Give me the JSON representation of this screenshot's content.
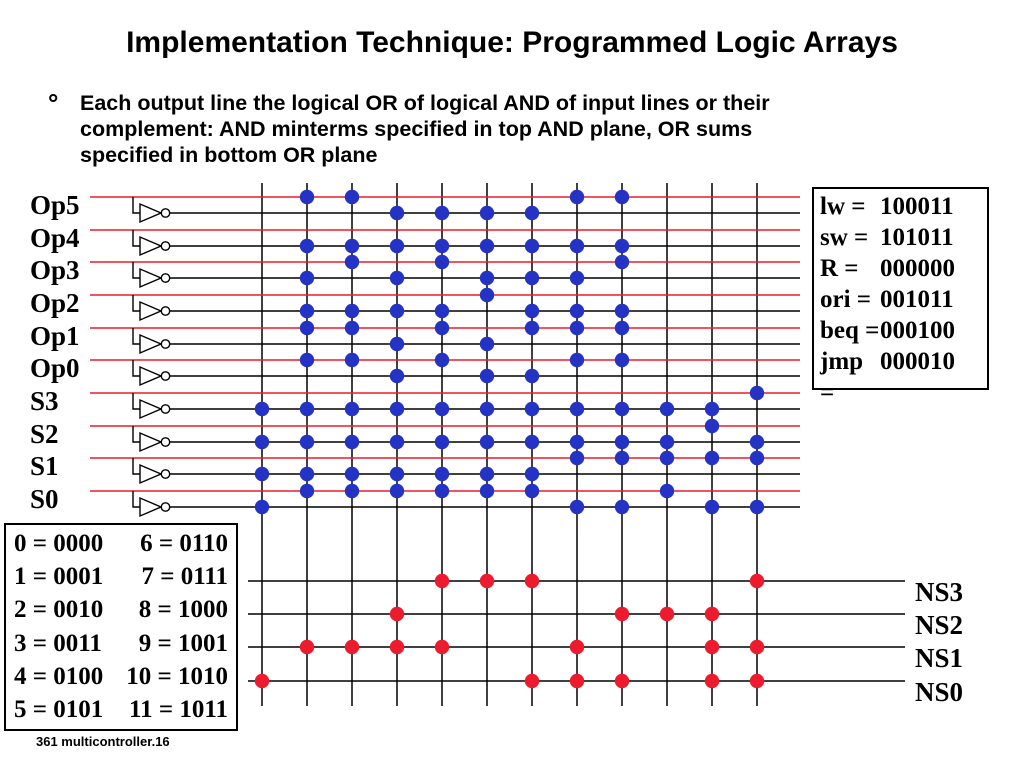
{
  "title": "Implementation Technique: Programmed Logic Arrays",
  "bullet": {
    "symbol": "°",
    "lines": [
      "Each output line the logical OR of logical AND of input lines or their",
      "complement: AND minterms specified in top AND plane, OR sums",
      "specified in bottom OR plane"
    ]
  },
  "pla": {
    "num_columns": 12,
    "colors": {
      "input_line": "#ec1c2e",
      "and_dot": "#2433c4",
      "or_dot": "#ec1c2e",
      "wire": "#000000"
    },
    "inputs": [
      {
        "label": "Op5",
        "true_dots": [
          2,
          3,
          8,
          9
        ],
        "comp_dots": [
          4,
          5,
          6,
          7
        ]
      },
      {
        "label": "Op4",
        "true_dots": [],
        "comp_dots": [
          2,
          3,
          4,
          5,
          6,
          7,
          8,
          9
        ]
      },
      {
        "label": "Op3",
        "true_dots": [
          3,
          5,
          9
        ],
        "comp_dots": [
          2,
          4,
          6,
          7,
          8
        ]
      },
      {
        "label": "Op2",
        "true_dots": [
          6
        ],
        "comp_dots": [
          2,
          3,
          4,
          5,
          7,
          8,
          9
        ]
      },
      {
        "label": "Op1",
        "true_dots": [
          2,
          3,
          5,
          7,
          8,
          9
        ],
        "comp_dots": [
          4,
          6
        ]
      },
      {
        "label": "Op0",
        "true_dots": [
          2,
          3,
          5,
          8,
          9
        ],
        "comp_dots": [
          4,
          6,
          7
        ]
      },
      {
        "label": "S3",
        "true_dots": [
          12
        ],
        "comp_dots": [
          1,
          2,
          3,
          4,
          5,
          6,
          7,
          8,
          9,
          10,
          11
        ]
      },
      {
        "label": "S2",
        "true_dots": [
          11
        ],
        "comp_dots": [
          1,
          2,
          3,
          4,
          5,
          6,
          7,
          8,
          9,
          10,
          12
        ]
      },
      {
        "label": "S1",
        "true_dots": [
          8,
          9,
          10,
          11,
          12
        ],
        "comp_dots": [
          1,
          2,
          3,
          4,
          5,
          6,
          7
        ]
      },
      {
        "label": "S0",
        "true_dots": [
          2,
          3,
          4,
          5,
          6,
          7,
          10
        ],
        "comp_dots": [
          1,
          8,
          9,
          11,
          12
        ]
      }
    ],
    "outputs": [
      {
        "label": "NS3",
        "dots": [
          5,
          6,
          7,
          12
        ]
      },
      {
        "label": "NS2",
        "dots": [
          4,
          9,
          10,
          11
        ]
      },
      {
        "label": "NS1",
        "dots": [
          2,
          3,
          4,
          5,
          8,
          11,
          12
        ]
      },
      {
        "label": "NS0",
        "dots": [
          1,
          7,
          8,
          9,
          11,
          12
        ]
      }
    ]
  },
  "opcode_table": {
    "rows": [
      {
        "label": "lw =",
        "value": "100011"
      },
      {
        "label": "sw =",
        "value": "101011"
      },
      {
        "label": "R =",
        "value": "000000"
      },
      {
        "label": "ori =",
        "value": "001011"
      },
      {
        "label": "beq =",
        "value": "000100"
      },
      {
        "label": "jmp =",
        "value": "000010"
      }
    ]
  },
  "state_table": {
    "rows": [
      [
        "0 = 0000",
        "6 = 0110"
      ],
      [
        "1 = 0001",
        "7 = 0111"
      ],
      [
        "2 = 0010",
        "8 = 1000"
      ],
      [
        "3 = 0011",
        "9 = 1001"
      ],
      [
        "4 = 0100",
        "10 = 1010"
      ],
      [
        "5 = 0101",
        "11 = 1011"
      ]
    ]
  },
  "caption": "361 multicontroller.16"
}
